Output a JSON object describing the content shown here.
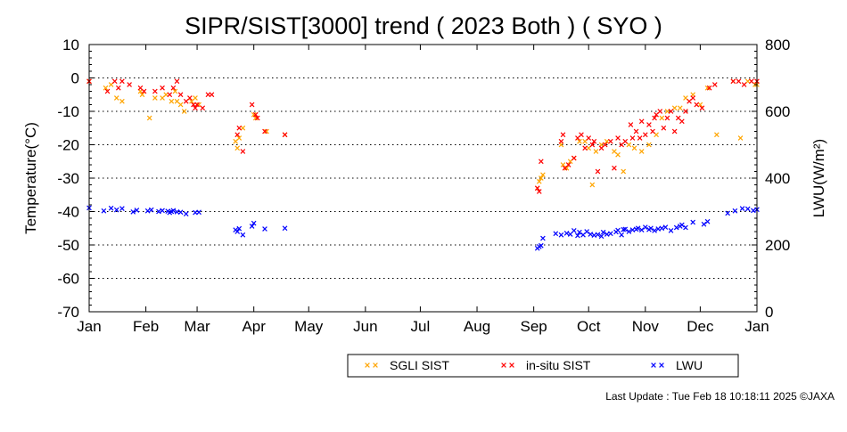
{
  "chart_data": {
    "type": "scatter",
    "title": "SIPR/SIST[3000] trend ( 2023 Both ) ( SYO )",
    "ylabel": "Temperature(°C)",
    "ylabel_right": "LWU(W/m²)",
    "ylim": [
      -70,
      10
    ],
    "ylim_right": [
      0,
      800
    ],
    "y_ticks": [
      10,
      0,
      -10,
      -20,
      -30,
      -40,
      -50,
      -60,
      -70
    ],
    "y_tick_labels": [
      "10",
      "0",
      "-10",
      "-20",
      "-30",
      "-40",
      "-50",
      "-60",
      "-70"
    ],
    "y_right_ticks": [
      800,
      600,
      400,
      200,
      0
    ],
    "y_right_tick_labels": [
      "800",
      "600",
      "400",
      "200",
      "0"
    ],
    "x_ticks": [
      0,
      31,
      59,
      90,
      120,
      151,
      181,
      212,
      243,
      273,
      304,
      334,
      365
    ],
    "x_tick_labels": [
      "Jan",
      "Feb",
      "Mar",
      "Apr",
      "May",
      "Jun",
      "Jul",
      "Aug",
      "Sep",
      "Oct",
      "Nov",
      "Dec",
      "Jan"
    ],
    "x_unit": "day of year",
    "grid": "horizontal dotted",
    "legend_placement": "bottom",
    "series": [
      {
        "name": "SGLI SIST",
        "axis": "left",
        "color": "#ffa500",
        "x": [
          0,
          9,
          12,
          15,
          18,
          28,
          29,
          33,
          36,
          40,
          42,
          45,
          47,
          48,
          50,
          52,
          56,
          58,
          60,
          80,
          81,
          82,
          84,
          90,
          91,
          97,
          107,
          245,
          246,
          247,
          248,
          258,
          259,
          261,
          263,
          265,
          268,
          271,
          273,
          275,
          277,
          280,
          283,
          287,
          289,
          292,
          295,
          298,
          302,
          306,
          310,
          313,
          316,
          320,
          323,
          326,
          330,
          334,
          338,
          343,
          352,
          356,
          360,
          364,
          365
        ],
        "y": [
          -1,
          -3,
          -2,
          -6,
          -7,
          -4,
          -5,
          -12,
          -6,
          -6,
          -5,
          -7,
          -4,
          -7,
          -8,
          -10,
          -7,
          -6,
          -8,
          -19,
          -21,
          -18,
          -15,
          -11,
          -12,
          -16,
          -17,
          -33,
          -31,
          -30,
          -29,
          -20,
          -26,
          -27,
          -25,
          -24,
          -19,
          -19,
          -21,
          -32,
          -22,
          -20,
          -19,
          -22,
          -23,
          -28,
          -20,
          -21,
          -22,
          -20,
          -17,
          -12,
          -10,
          -9,
          -9,
          -6,
          -5,
          -8,
          -3,
          -17,
          -1,
          -18,
          -1,
          -2,
          -2
        ]
      },
      {
        "name": "in-situ SIST",
        "axis": "left",
        "color": "#ff0000",
        "x": [
          0,
          10,
          14,
          16,
          18,
          22,
          28,
          30,
          36,
          40,
          44,
          46,
          48,
          50,
          53,
          55,
          57,
          58,
          59,
          62,
          65,
          67,
          81,
          82,
          84,
          89,
          91,
          92,
          96,
          107,
          245,
          246,
          247,
          258,
          259,
          260,
          262,
          265,
          267,
          269,
          271,
          273,
          275,
          276,
          278,
          280,
          282,
          285,
          287,
          289,
          291,
          293,
          296,
          297,
          299,
          301,
          302,
          304,
          306,
          308,
          309,
          310,
          312,
          314,
          316,
          318,
          320,
          322,
          324,
          326,
          328,
          330,
          332,
          335,
          339,
          342,
          352,
          355,
          358,
          362,
          365
        ],
        "y": [
          -1,
          -4,
          -1,
          -3,
          -1,
          -2,
          -3,
          -4,
          -4,
          -3,
          -5,
          -3,
          -1,
          -5,
          -7,
          -6,
          -8,
          -9,
          -8,
          -9,
          -5,
          -5,
          -17,
          -15,
          -22,
          -8,
          -11,
          -12,
          -16,
          -17,
          -33,
          -34,
          -25,
          -19,
          -17,
          -27,
          -26,
          -24,
          -18,
          -17,
          -21,
          -18,
          -20,
          -19,
          -28,
          -21,
          -20,
          -19,
          -27,
          -18,
          -20,
          -19,
          -14,
          -18,
          -16,
          -18,
          -13,
          -17,
          -14,
          -16,
          -12,
          -11,
          -10,
          -15,
          -12,
          -10,
          -16,
          -12,
          -13,
          -10,
          -7,
          -6,
          -8,
          -9,
          -3,
          -2,
          -1,
          -1,
          -2,
          -1,
          -1
        ]
      },
      {
        "name": "LWU",
        "axis": "right",
        "color": "#0000ff",
        "x": [
          0,
          8,
          12,
          15,
          18,
          24,
          26,
          32,
          34,
          38,
          40,
          43,
          44,
          45,
          46,
          48,
          50,
          53,
          58,
          60,
          80,
          81,
          82,
          84,
          89,
          90,
          96,
          107,
          245,
          246,
          247,
          248,
          255,
          258,
          261,
          263,
          265,
          267,
          268,
          270,
          272,
          274,
          276,
          278,
          280,
          281,
          283,
          285,
          288,
          289,
          291,
          292,
          293,
          295,
          297,
          299,
          300,
          302,
          304,
          306,
          307,
          309,
          311,
          313,
          315,
          318,
          321,
          323,
          324,
          326,
          330,
          336,
          338,
          349,
          353,
          357,
          360,
          363,
          365
        ],
        "y": [
          311,
          302,
          310,
          305,
          309,
          299,
          304,
          302,
          305,
          300,
          303,
          301,
          297,
          300,
          303,
          299,
          298,
          293,
          297,
          298,
          245,
          240,
          249,
          230,
          256,
          265,
          248,
          250,
          190,
          195,
          198,
          220,
          234,
          230,
          235,
          232,
          243,
          228,
          238,
          230,
          240,
          232,
          229,
          231,
          226,
          238,
          232,
          234,
          239,
          244,
          230,
          246,
          247,
          240,
          245,
          247,
          250,
          245,
          253,
          246,
          250,
          243,
          248,
          250,
          253,
          243,
          252,
          256,
          260,
          252,
          268,
          262,
          270,
          295,
          302,
          309,
          308,
          303,
          306
        ]
      }
    ]
  },
  "legend": [
    {
      "label": "SGLI SIST",
      "color": "#ffa500"
    },
    {
      "label": "in-situ SIST",
      "color": "#ff0000"
    },
    {
      "label": "LWU",
      "color": "#0000ff"
    }
  ],
  "footer": "Last Update : Tue Feb 18 10:18:11 2025  ©JAXA"
}
